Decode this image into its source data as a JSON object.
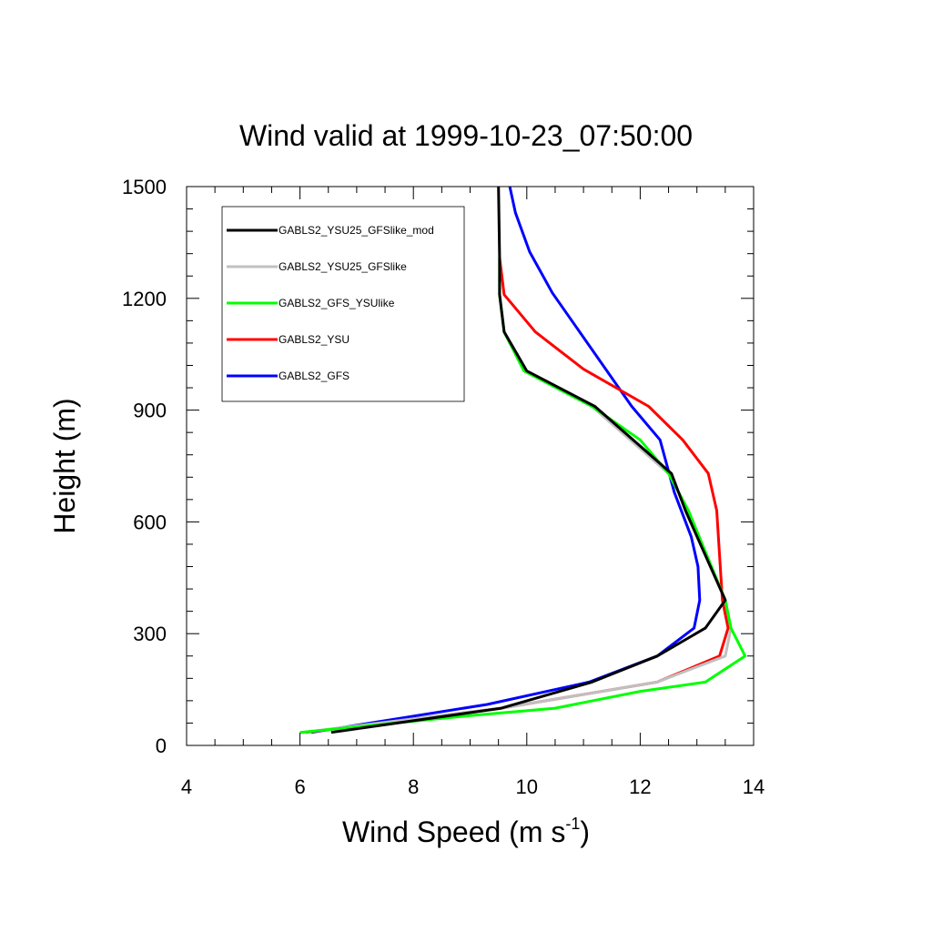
{
  "chart_data": {
    "type": "line",
    "title": "Wind valid at 1999-10-23_07:50:00",
    "xlabel": "Wind Speed (m s",
    "xlabel_sup": "-1",
    "xlabel_end": ")",
    "ylabel": "Height (m)",
    "xlim": [
      4,
      14
    ],
    "ylim": [
      0,
      1500
    ],
    "xticks": [
      4,
      6,
      8,
      10,
      12,
      14
    ],
    "yticks": [
      0,
      300,
      600,
      900,
      1200,
      1500
    ],
    "grid": false,
    "legend_position": "top-left",
    "series": [
      {
        "name": "GABLS2_YSU25_GFSlike_mod",
        "color": "#000000",
        "points": [
          [
            6.55,
            35
          ],
          [
            9.55,
            100
          ],
          [
            11.15,
            170
          ],
          [
            12.3,
            240
          ],
          [
            13.15,
            315
          ],
          [
            13.5,
            390
          ],
          [
            12.8,
            630
          ],
          [
            12.55,
            730
          ],
          [
            11.2,
            910
          ],
          [
            10.0,
            1005
          ],
          [
            9.6,
            1110
          ],
          [
            9.52,
            1210
          ],
          [
            9.52,
            1310
          ],
          [
            9.5,
            1500
          ]
        ]
      },
      {
        "name": "GABLS2_YSU25_GFSlike",
        "color": "#c0c0c0",
        "points": [
          [
            6.05,
            35
          ],
          [
            9.55,
            100
          ],
          [
            12.3,
            170
          ],
          [
            13.5,
            240
          ],
          [
            13.6,
            315
          ],
          [
            13.5,
            390
          ],
          [
            12.85,
            630
          ],
          [
            12.5,
            730
          ],
          [
            11.15,
            910
          ],
          [
            9.95,
            1005
          ],
          [
            9.6,
            1110
          ],
          [
            9.52,
            1210
          ],
          [
            9.52,
            1310
          ]
        ]
      },
      {
        "name": "GABLS2_GFS_YSUlike",
        "color": "#00ff00",
        "points": [
          [
            6.0,
            35
          ],
          [
            9.0,
            80
          ],
          [
            10.5,
            100
          ],
          [
            12.0,
            145
          ],
          [
            13.15,
            170
          ],
          [
            13.85,
            240
          ],
          [
            13.6,
            315
          ],
          [
            13.5,
            390
          ],
          [
            12.85,
            630
          ],
          [
            12.5,
            730
          ],
          [
            12.0,
            820
          ],
          [
            11.15,
            910
          ],
          [
            9.95,
            1005
          ],
          [
            9.6,
            1110
          ],
          [
            9.52,
            1210
          ],
          [
            9.52,
            1310
          ]
        ]
      },
      {
        "name": "GABLS2_YSU",
        "color": "#ff0000",
        "points": [
          [
            6.1,
            35
          ],
          [
            9.55,
            100
          ],
          [
            12.3,
            170
          ],
          [
            13.4,
            240
          ],
          [
            13.55,
            315
          ],
          [
            13.45,
            390
          ],
          [
            13.35,
            630
          ],
          [
            13.2,
            730
          ],
          [
            12.75,
            820
          ],
          [
            12.15,
            910
          ],
          [
            11.0,
            1010
          ],
          [
            10.15,
            1110
          ],
          [
            9.6,
            1210
          ],
          [
            9.52,
            1310
          ]
        ]
      },
      {
        "name": "GABLS2_GFS",
        "color": "#0000ff",
        "points": [
          [
            6.2,
            35
          ],
          [
            9.3,
            110
          ],
          [
            11.1,
            170
          ],
          [
            12.3,
            240
          ],
          [
            12.95,
            315
          ],
          [
            13.05,
            390
          ],
          [
            13.02,
            480
          ],
          [
            12.9,
            560
          ],
          [
            12.6,
            680
          ],
          [
            12.35,
            820
          ],
          [
            11.85,
            910
          ],
          [
            10.45,
            1215
          ],
          [
            10.05,
            1325
          ],
          [
            9.8,
            1430
          ],
          [
            9.7,
            1500
          ]
        ]
      }
    ]
  }
}
